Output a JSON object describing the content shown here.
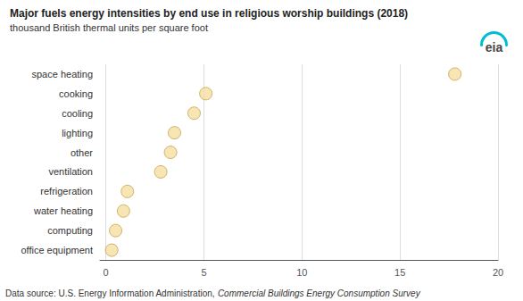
{
  "chart_data": {
    "type": "scatter",
    "title": "Major fuels energy intensities by end use in religious worship buildings (2018)",
    "subtitle": "thousand British thermal units per square foot",
    "footer": [
      "Data source: U.S. Energy Information Administration, ",
      "Commercial Buildings Energy Consumption Survey"
    ],
    "annotations": [
      "eia"
    ],
    "categories": [
      "space heating",
      "cooking",
      "cooling",
      "lighting",
      "other",
      "ventilation",
      "refrigeration",
      "water heating",
      "computing",
      "office equipment"
    ],
    "values": [
      17.8,
      5.1,
      4.5,
      3.5,
      3.3,
      2.8,
      1.1,
      0.9,
      0.5,
      0.3
    ],
    "color": "#f5dfa0",
    "xlim": [
      -0.3,
      20
    ],
    "xticks": [
      0,
      5,
      10,
      15,
      20
    ],
    "grid": true
  }
}
